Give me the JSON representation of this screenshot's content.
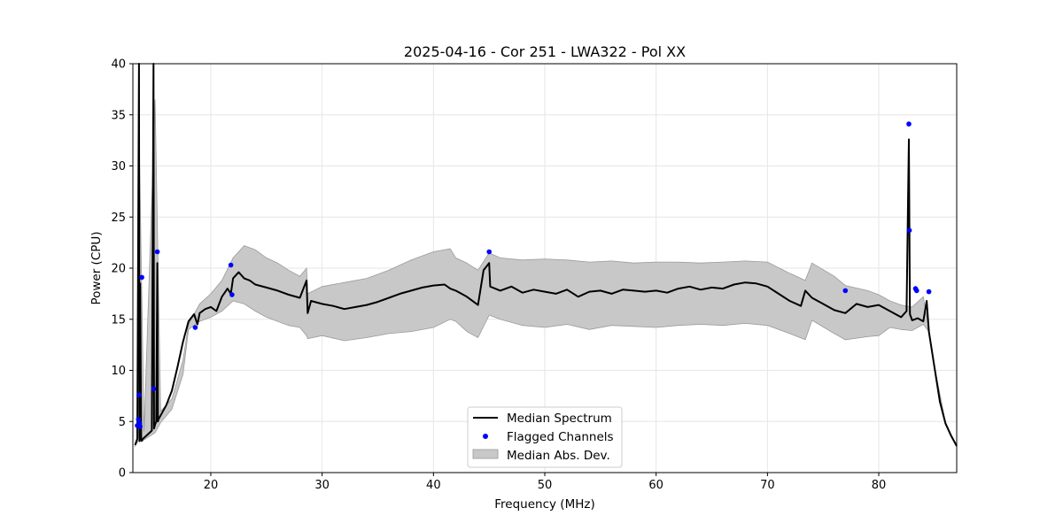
{
  "chart_data": {
    "type": "line",
    "title": "2025-04-16 - Cor 251 - LWA322 - Pol XX",
    "xlabel": "Frequency (MHz)",
    "ylabel": "Power (CPU)",
    "xlim": [
      13.0,
      87.0
    ],
    "ylim": [
      0,
      40
    ],
    "xticks": [
      20,
      30,
      40,
      50,
      60,
      70,
      80
    ],
    "yticks": [
      0,
      5,
      10,
      15,
      20,
      25,
      30,
      35,
      40
    ],
    "grid": true,
    "legend_position": "lower-center",
    "legend": [
      "Median Spectrum",
      "Flagged Channels",
      "Median Abs. Dev."
    ],
    "colors": {
      "median": "#000000",
      "flagged": "#0000ff",
      "mad_fill": "#c8c8c8",
      "mad_edge": "#9a9a9a",
      "grid": "#e6e6e6"
    },
    "series": [
      {
        "name": "Median Spectrum",
        "x": [
          13.2,
          13.4,
          13.55,
          13.6,
          13.65,
          13.75,
          13.8,
          13.9,
          14.1,
          14.4,
          14.7,
          14.85,
          14.9,
          14.95,
          15.0,
          15.1,
          15.2,
          15.25,
          15.3,
          15.5,
          16.0,
          16.5,
          17.0,
          17.5,
          18.0,
          18.5,
          18.8,
          19.0,
          19.5,
          20.0,
          20.5,
          21.0,
          21.5,
          21.8,
          22.0,
          22.5,
          23.0,
          23.5,
          24.0,
          25.0,
          26.0,
          27.0,
          28.0,
          28.6,
          28.7,
          29.0,
          30.0,
          31.0,
          32.0,
          33.0,
          34.0,
          35.0,
          36.0,
          37.0,
          38.0,
          39.0,
          40.0,
          41.0,
          41.5,
          42.0,
          43.0,
          44.0,
          44.5,
          45.0,
          45.1,
          46.0,
          47.0,
          48.0,
          49.0,
          50.0,
          51.0,
          52.0,
          53.0,
          54.0,
          55.0,
          56.0,
          57.0,
          58.0,
          59.0,
          60.0,
          61.0,
          62.0,
          63.0,
          64.0,
          65.0,
          66.0,
          67.0,
          68.0,
          69.0,
          70.0,
          71.0,
          72.0,
          73.0,
          73.4,
          74.0,
          75.0,
          76.0,
          77.0,
          78.0,
          79.0,
          80.0,
          81.0,
          82.0,
          82.5,
          82.7,
          82.8,
          83.0,
          83.5,
          84.0,
          84.3,
          84.5,
          85.0,
          85.5,
          86.0,
          86.5,
          87.0
        ],
        "values": [
          2.7,
          3.3,
          40,
          3.1,
          18.5,
          3.2,
          3.1,
          3.3,
          3.5,
          3.8,
          4.1,
          40,
          4.3,
          4.5,
          4.7,
          5.0,
          20.5,
          5.0,
          5.2,
          5.6,
          6.6,
          8.0,
          10.3,
          12.8,
          14.8,
          15.5,
          14.5,
          15.6,
          16.0,
          16.2,
          15.8,
          17.2,
          18.0,
          17.5,
          19.0,
          19.6,
          19.0,
          18.8,
          18.4,
          18.1,
          17.8,
          17.4,
          17.1,
          18.8,
          15.6,
          16.8,
          16.5,
          16.3,
          16.0,
          16.2,
          16.4,
          16.7,
          17.1,
          17.5,
          17.8,
          18.1,
          18.3,
          18.4,
          18.0,
          17.8,
          17.2,
          16.4,
          19.8,
          20.5,
          18.2,
          17.8,
          18.2,
          17.6,
          17.9,
          17.7,
          17.5,
          17.9,
          17.2,
          17.7,
          17.8,
          17.5,
          17.9,
          17.8,
          17.7,
          17.8,
          17.6,
          18.0,
          18.2,
          17.9,
          18.1,
          18.0,
          18.4,
          18.6,
          18.5,
          18.2,
          17.5,
          16.8,
          16.3,
          17.8,
          17.1,
          16.5,
          15.9,
          15.6,
          16.5,
          16.2,
          16.4,
          15.8,
          15.2,
          15.8,
          32.6,
          15.5,
          14.9,
          15.1,
          14.8,
          16.8,
          13.8,
          10.3,
          6.9,
          4.8,
          3.6,
          2.6
        ]
      },
      {
        "name": "Median Abs. Dev.",
        "x": [
          13.2,
          13.5,
          13.6,
          14.0,
          15.0,
          15.5,
          16.5,
          17.5,
          18.0,
          19.0,
          20.0,
          21.0,
          22.0,
          23.0,
          24.0,
          25.0,
          26.0,
          27.0,
          28.0,
          28.6,
          28.7,
          30.0,
          32.0,
          34.0,
          36.0,
          38.0,
          40.0,
          41.5,
          42.0,
          43.0,
          44.0,
          45.0,
          46.0,
          48.0,
          50.0,
          52.0,
          54.0,
          56.0,
          58.0,
          60.0,
          62.0,
          64.0,
          66.0,
          68.0,
          70.0,
          72.0,
          73.4,
          74.0,
          76.0,
          77.0,
          79.0,
          80.0,
          81.0,
          82.0,
          83.0,
          84.0,
          84.5,
          85.0,
          86.0,
          87.0
        ],
        "upper": [
          2.8,
          3.5,
          31.0,
          4.0,
          36.5,
          6.0,
          7.2,
          11.0,
          14.5,
          16.5,
          17.5,
          18.8,
          21.0,
          22.2,
          21.8,
          21.0,
          20.5,
          19.8,
          19.2,
          20.0,
          17.5,
          18.2,
          18.6,
          19.0,
          19.8,
          20.8,
          21.6,
          21.9,
          21.0,
          20.5,
          19.8,
          21.5,
          21.0,
          20.8,
          20.9,
          20.8,
          20.6,
          20.7,
          20.5,
          20.6,
          20.6,
          20.5,
          20.6,
          20.7,
          20.6,
          19.5,
          18.8,
          20.5,
          19.2,
          18.3,
          17.8,
          17.4,
          16.8,
          16.4,
          16.2,
          17.2,
          14.0,
          10.4,
          4.9,
          2.6
        ],
        "lower": [
          2.6,
          3.1,
          3.0,
          3.2,
          3.9,
          4.9,
          6.2,
          9.6,
          14.0,
          14.8,
          15.2,
          15.8,
          16.8,
          16.5,
          15.8,
          15.2,
          14.8,
          14.4,
          14.2,
          13.4,
          13.1,
          13.4,
          12.9,
          13.2,
          13.6,
          13.8,
          14.2,
          15.0,
          14.8,
          13.8,
          13.2,
          15.4,
          15.0,
          14.4,
          14.2,
          14.5,
          14.0,
          14.4,
          14.3,
          14.2,
          14.4,
          14.5,
          14.4,
          14.6,
          14.4,
          13.6,
          13.0,
          14.9,
          13.6,
          13.0,
          13.3,
          13.4,
          14.2,
          14.0,
          13.9,
          14.5,
          13.8,
          10.2,
          4.7,
          2.6
        ]
      },
      {
        "name": "Flagged Channels",
        "x": [
          13.4,
          13.5,
          13.55,
          13.6,
          13.65,
          13.8,
          14.85,
          15.2,
          18.6,
          21.8,
          21.9,
          45.0,
          77.0,
          82.7,
          82.75,
          83.3,
          83.4,
          84.5
        ],
        "values": [
          4.6,
          5.2,
          7.6,
          4.8,
          4.5,
          19.1,
          8.2,
          21.6,
          14.2,
          20.3,
          17.4,
          21.6,
          17.8,
          34.1,
          23.7,
          18.0,
          17.8,
          17.7
        ]
      }
    ]
  }
}
